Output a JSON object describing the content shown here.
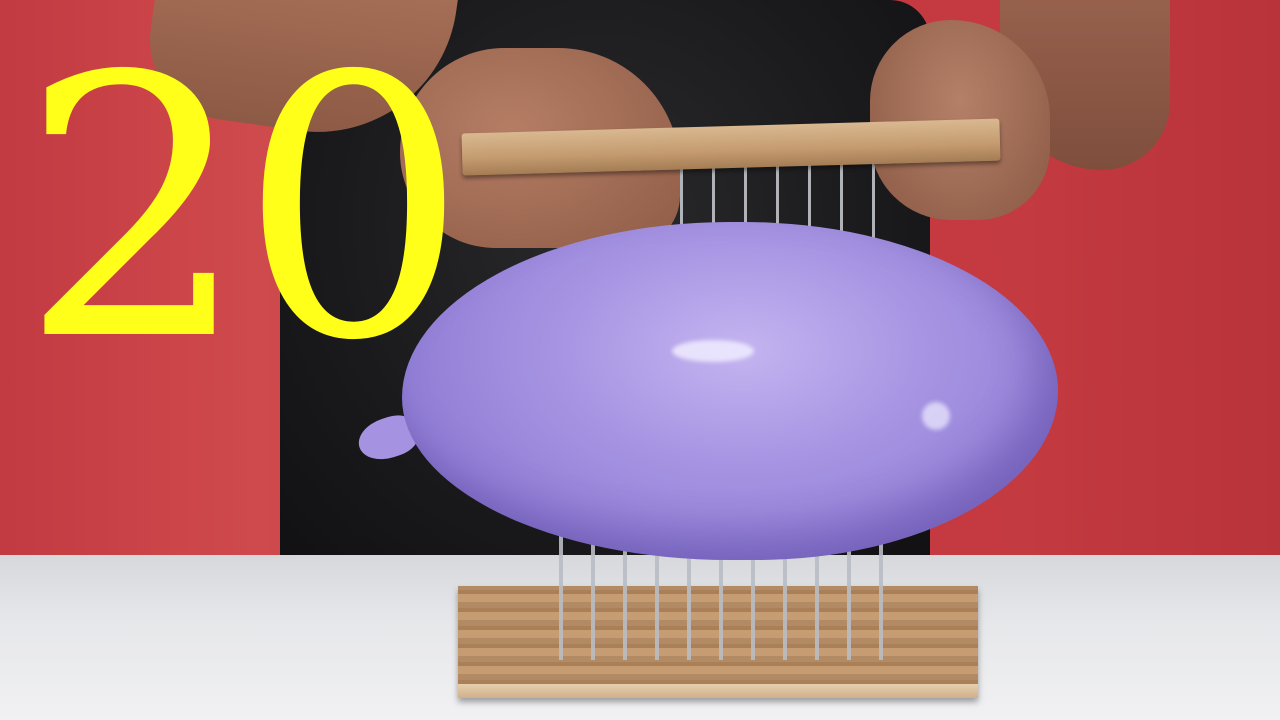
{
  "overlay": {
    "number": "20",
    "color": "#ffff1a"
  },
  "scene": {
    "balloon_color": "#a997e4",
    "background_color": "#c8383f",
    "table_color": "#e6e7ea"
  }
}
